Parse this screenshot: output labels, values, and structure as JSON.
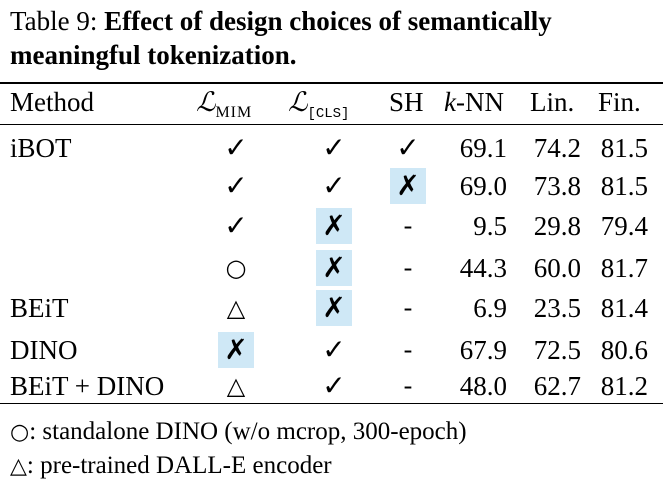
{
  "caption": {
    "label": "Table 9:",
    "title": "Effect of design choices of semantically meaningful tokenization."
  },
  "headers": {
    "method": "Method",
    "mim_symbol": "ℒ",
    "mim_sub": "MIM",
    "cls_symbol": "ℒ",
    "cls_sub": "[CLS]",
    "sh": "SH",
    "knn_k": "k",
    "knn_rest": "-NN",
    "lin": "Lin.",
    "fin": "Fin."
  },
  "rows": [
    {
      "method": "iBOT",
      "mim": "✓",
      "cls": "✓",
      "sh": "✓",
      "knn": "69.1",
      "lin": "74.2",
      "fin": "81.5"
    },
    {
      "method": "",
      "mim": "✓",
      "cls": "✓",
      "sh": "✗",
      "knn": "69.0",
      "lin": "73.8",
      "fin": "81.5"
    },
    {
      "method": "",
      "mim": "✓",
      "cls": "✗",
      "sh": "-",
      "knn": "9.5",
      "lin": "29.8",
      "fin": "79.4"
    },
    {
      "method": "",
      "mim": "○",
      "cls": "✗",
      "sh": "-",
      "knn": "44.3",
      "lin": "60.0",
      "fin": "81.7"
    },
    {
      "method": "BEiT",
      "mim": "△",
      "cls": "✗",
      "sh": "-",
      "knn": "6.9",
      "lin": "23.5",
      "fin": "81.4"
    },
    {
      "method": "DINO",
      "mim": "✗",
      "cls": "✓",
      "sh": "-",
      "knn": "67.9",
      "lin": "72.5",
      "fin": "80.6"
    },
    {
      "method": "BEiT + DINO",
      "mim": "△",
      "cls": "✓",
      "sh": "-",
      "knn": "48.0",
      "lin": "62.7",
      "fin": "81.2"
    }
  ],
  "notes": [
    {
      "symbol": "○",
      "text": ": standalone DINO (w/o mcrop, 300-epoch)"
    },
    {
      "symbol": "△",
      "text": ": pre-trained DALL-E encoder"
    }
  ],
  "highlight_color": "#cfe8f6"
}
